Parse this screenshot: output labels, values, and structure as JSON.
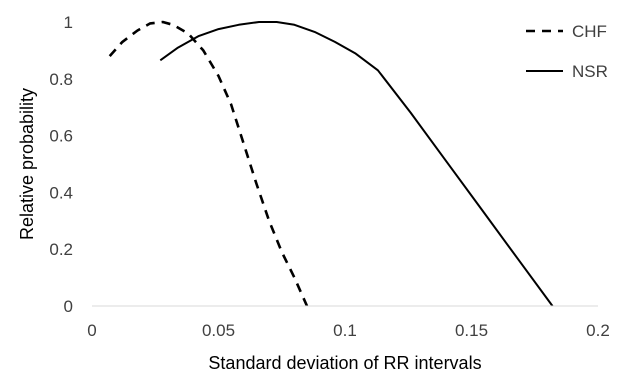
{
  "chart_data": {
    "type": "line",
    "title": "",
    "xlabel": "Standard deviation of RR intervals",
    "ylabel": "Relative probability",
    "xlim": [
      0,
      0.2
    ],
    "ylim": [
      0,
      1
    ],
    "x_ticks": [
      "0",
      "0.05",
      "0.1",
      "0.15",
      "0.2"
    ],
    "y_ticks": [
      "0",
      "0.2",
      "0.4",
      "0.6",
      "0.8",
      "1"
    ],
    "grid": false,
    "legend_position": "top-right",
    "series": [
      {
        "name": "CHF",
        "style": "dashed",
        "color": "#000000",
        "points": [
          [
            0.007,
            0.88
          ],
          [
            0.012,
            0.93
          ],
          [
            0.018,
            0.97
          ],
          [
            0.023,
            0.995
          ],
          [
            0.028,
            1.0
          ],
          [
            0.032,
            0.99
          ],
          [
            0.038,
            0.96
          ],
          [
            0.044,
            0.9
          ],
          [
            0.05,
            0.81
          ],
          [
            0.055,
            0.71
          ],
          [
            0.06,
            0.57
          ],
          [
            0.065,
            0.43
          ],
          [
            0.07,
            0.3
          ],
          [
            0.075,
            0.19
          ],
          [
            0.08,
            0.1
          ],
          [
            0.085,
            0.0
          ]
        ]
      },
      {
        "name": "NSR",
        "style": "solid",
        "color": "#000000",
        "points": [
          [
            0.027,
            0.865
          ],
          [
            0.034,
            0.91
          ],
          [
            0.042,
            0.95
          ],
          [
            0.05,
            0.975
          ],
          [
            0.058,
            0.99
          ],
          [
            0.066,
            1.0
          ],
          [
            0.073,
            1.0
          ],
          [
            0.08,
            0.99
          ],
          [
            0.088,
            0.965
          ],
          [
            0.096,
            0.93
          ],
          [
            0.104,
            0.89
          ],
          [
            0.113,
            0.83
          ],
          [
            0.126,
            0.68
          ],
          [
            0.14,
            0.51
          ],
          [
            0.154,
            0.34
          ],
          [
            0.168,
            0.17
          ],
          [
            0.182,
            0.0
          ]
        ]
      }
    ]
  }
}
